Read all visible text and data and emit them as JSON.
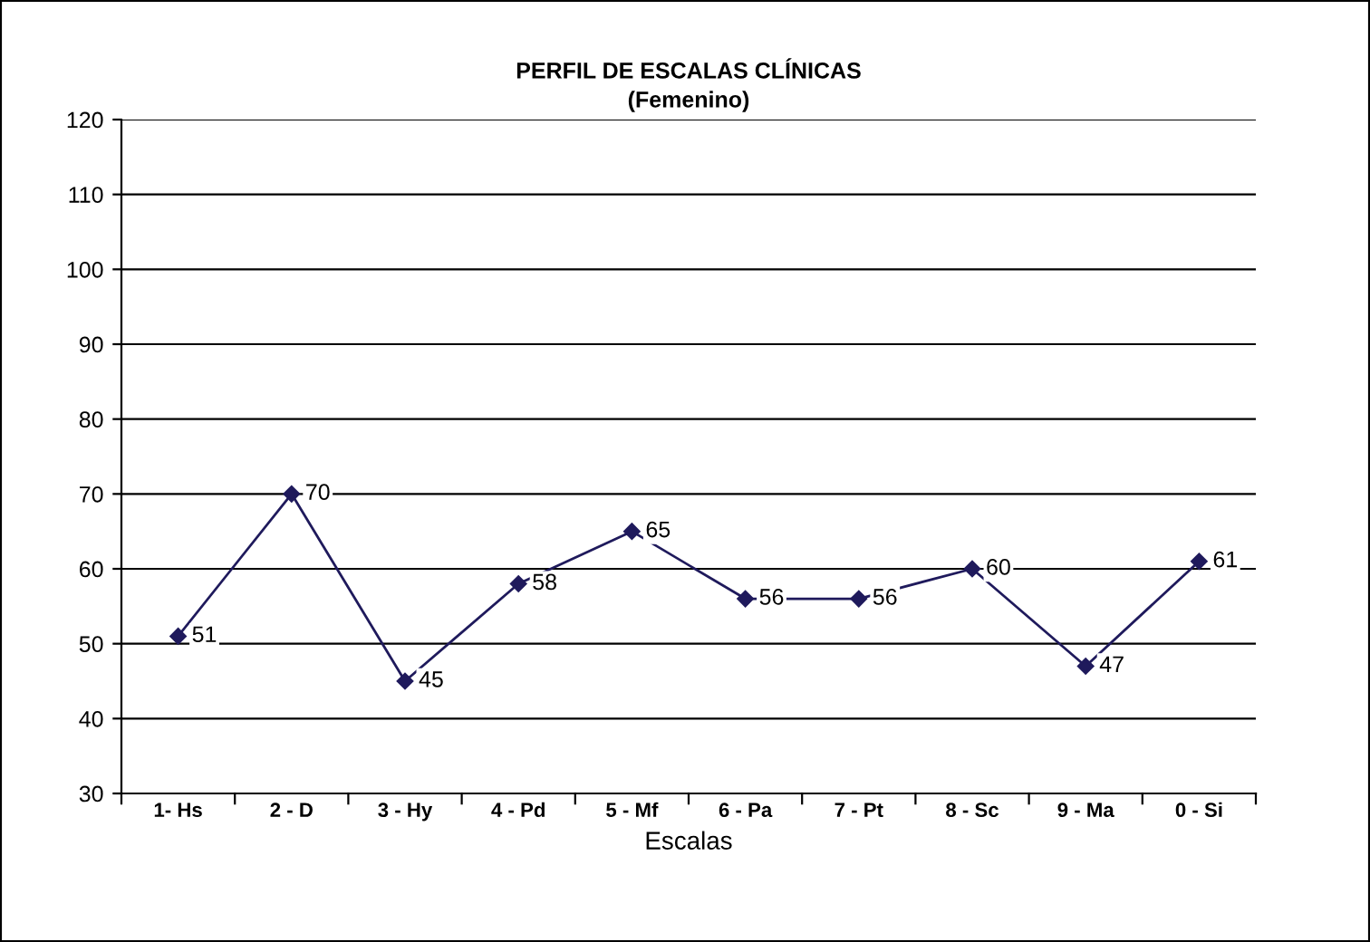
{
  "chart_data": {
    "type": "line",
    "title": "PERFIL DE ESCALAS CLÍNICAS",
    "subtitle": "(Femenino)",
    "xlabel": "Escalas",
    "categories": [
      "1- Hs",
      "2 - D",
      "3 - Hy",
      "4 - Pd",
      "5 - Mf",
      "6 - Pa",
      "7 - Pt",
      "8 - Sc",
      "9 - Ma",
      "0 - Si"
    ],
    "series": [
      {
        "color": "#1f1a5c",
        "values": [
          51,
          70,
          45,
          58,
          65,
          56,
          56,
          60,
          47,
          61
        ]
      }
    ],
    "ylim": [
      30,
      120
    ],
    "yticks": [
      30,
      40,
      50,
      60,
      70,
      80,
      90,
      100,
      110,
      120
    ],
    "grid": "y",
    "marker": "diamond",
    "line_style": "solid",
    "data_labels": true,
    "legend": false
  }
}
